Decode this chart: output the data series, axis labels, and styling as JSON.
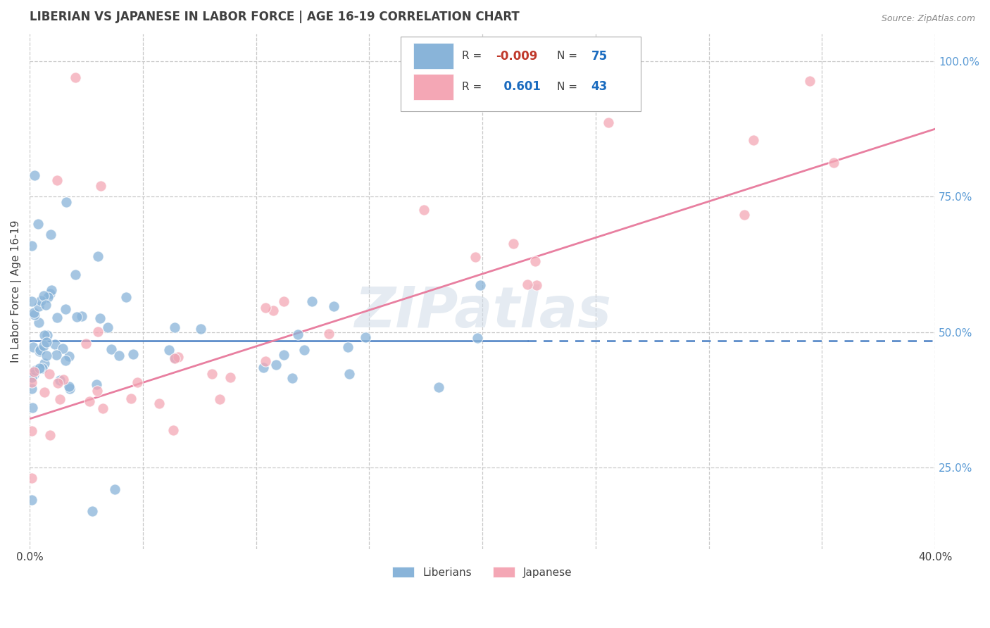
{
  "title": "LIBERIAN VS JAPANESE IN LABOR FORCE | AGE 16-19 CORRELATION CHART",
  "source": "Source: ZipAtlas.com",
  "ylabel_label": "In Labor Force | Age 16-19",
  "watermark": "ZIPatlas",
  "xlim": [
    0.0,
    0.4
  ],
  "ylim": [
    0.1,
    1.05
  ],
  "ytick_vals_right": [
    1.0,
    0.75,
    0.5,
    0.25
  ],
  "blue_R": "-0.009",
  "blue_N": "75",
  "pink_R": "0.601",
  "pink_N": "43",
  "blue_color": "#89b4d9",
  "pink_color": "#f4a7b5",
  "blue_line_color": "#4a80c4",
  "pink_line_color": "#e87fa0",
  "grid_color": "#c8c8c8",
  "background_color": "#ffffff",
  "right_label_color": "#5b9bd5",
  "title_color": "#404040",
  "legend_R_color": "#404040",
  "legend_N_color": "#1a6bbf",
  "neg_color": "#c0392b",
  "blue_seed": 12,
  "pink_seed": 99
}
